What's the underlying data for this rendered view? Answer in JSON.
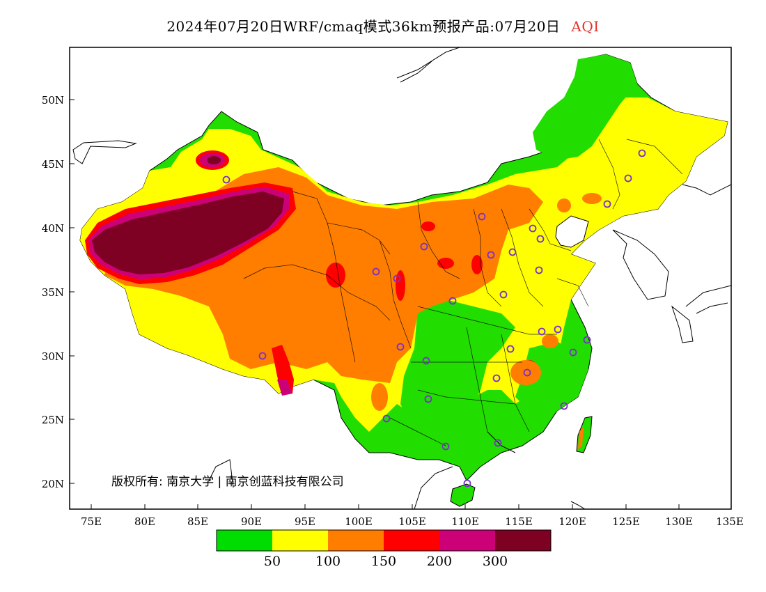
{
  "title": {
    "main": "2024年07月20日WRF/cmaq模式36km预报产品:07月20日",
    "variable": "AQI"
  },
  "copyright": "版权所有: 南京大学 | 南京创蓝科技有限公司",
  "axes": {
    "x_ticks": [
      "75E",
      "80E",
      "85E",
      "90E",
      "95E",
      "100E",
      "105E",
      "110E",
      "115E",
      "120E",
      "125E",
      "130E",
      "135E"
    ],
    "y_ticks": [
      "50N",
      "45N",
      "40N",
      "35N",
      "30N",
      "25N",
      "20N"
    ]
  },
  "legend": {
    "thresholds": [
      "50",
      "100",
      "150",
      "200",
      "300"
    ],
    "colors": [
      "#00dd00",
      "#ffff00",
      "#ff7e00",
      "#ff0000",
      "#cc0077",
      "#7e0023"
    ]
  },
  "map_colors": {
    "good": "#22dd00",
    "moderate": "#ffff00",
    "usg": "#ff7e00",
    "unhealthy": "#ff0000",
    "very_unhealthy": "#cc0077",
    "hazardous": "#7e0023",
    "station_marker": "#7a2fd0"
  }
}
